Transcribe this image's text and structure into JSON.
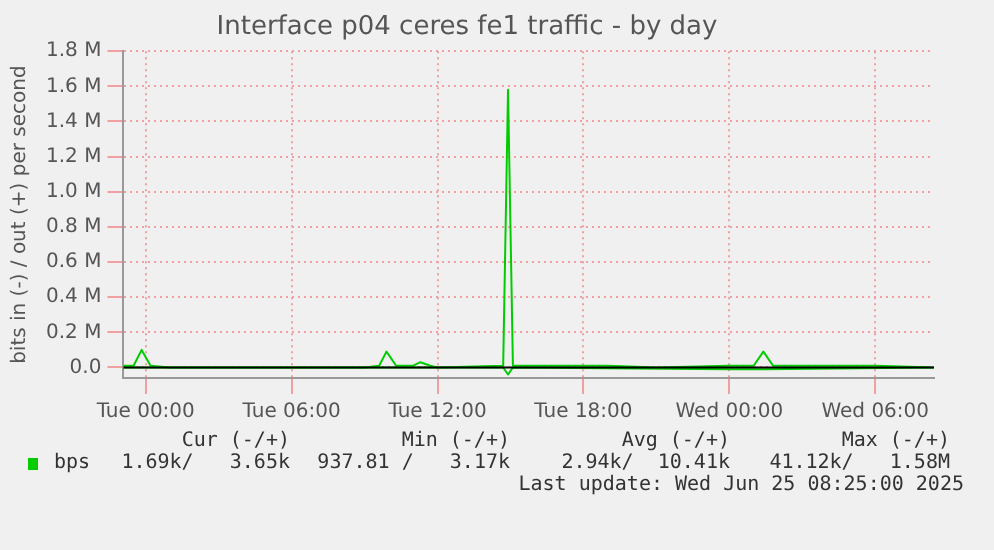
{
  "chart_data": {
    "type": "line",
    "title": "Interface p04 ceres fe1 traffic - by day",
    "ylabel": "bits in (-) / out (+) per second",
    "xlim": [
      "2025-06-23T23:05",
      "2025-06-25T08:25"
    ],
    "xticks": [
      {
        "value": "2025-06-24T00:00",
        "label": "Tue 00:00"
      },
      {
        "value": "2025-06-24T06:00",
        "label": "Tue 06:00"
      },
      {
        "value": "2025-06-24T12:00",
        "label": "Tue 12:00"
      },
      {
        "value": "2025-06-24T18:00",
        "label": "Tue 18:00"
      },
      {
        "value": "2025-06-25T00:00",
        "label": "Wed 00:00"
      },
      {
        "value": "2025-06-25T06:00",
        "label": "Wed 06:00"
      }
    ],
    "ylim": [
      -60000,
      1800000
    ],
    "yticks": [
      {
        "value": 0,
        "label": "0.0"
      },
      {
        "value": 200000,
        "label": "0.2 M"
      },
      {
        "value": 400000,
        "label": "0.4 M"
      },
      {
        "value": 600000,
        "label": "0.6 M"
      },
      {
        "value": 800000,
        "label": "0.8 M"
      },
      {
        "value": 1000000,
        "label": "1.0 M"
      },
      {
        "value": 1200000,
        "label": "1.2 M"
      },
      {
        "value": 1400000,
        "label": "1.4 M"
      },
      {
        "value": 1600000,
        "label": "1.6 M"
      },
      {
        "value": 1800000,
        "label": "1.8 M"
      }
    ],
    "grid": true,
    "legend": "bottom left",
    "marker": "none",
    "line_style": "solid",
    "series": [
      {
        "name": "bps",
        "color": "#00cc00",
        "x": [
          "2025-06-23T23:06",
          "2025-06-23T23:30",
          "2025-06-23T23:50",
          "2025-06-24T00:12",
          "2025-06-24T01:00",
          "2025-06-24T03:00",
          "2025-06-24T06:00",
          "2025-06-24T09:00",
          "2025-06-24T09:36",
          "2025-06-24T09:54",
          "2025-06-24T10:18",
          "2025-06-24T11:00",
          "2025-06-24T11:18",
          "2025-06-24T11:42",
          "2025-06-24T12:00",
          "2025-06-24T14:42",
          "2025-06-24T14:54",
          "2025-06-24T15:06",
          "2025-06-24T15:30",
          "2025-06-24T18:00",
          "2025-06-24T19:00",
          "2025-06-24T21:00",
          "2025-06-25T00:00",
          "2025-06-25T01:00",
          "2025-06-25T01:24",
          "2025-06-25T01:48",
          "2025-06-25T03:00",
          "2025-06-25T06:00",
          "2025-06-25T08:24"
        ],
        "values": [
          10000,
          10000,
          100000,
          10000,
          0,
          0,
          0,
          0,
          10000,
          90000,
          10000,
          10000,
          30000,
          10000,
          0,
          10000,
          1580000,
          10000,
          10000,
          10000,
          10000,
          0,
          10000,
          10000,
          90000,
          10000,
          10000,
          10000,
          0
        ]
      },
      {
        "color": "#00cc00",
        "x": [
          "2025-06-23T23:06",
          "2025-06-24T14:42",
          "2025-06-24T14:54",
          "2025-06-24T15:06",
          "2025-06-25T00:00",
          "2025-06-25T01:24",
          "2025-06-25T08:24"
        ],
        "values": [
          0,
          0,
          -40000,
          0,
          -10000,
          -10000,
          0
        ]
      }
    ],
    "annotations": [
      "Cur (-/+)",
      "Min (-/+)",
      "Avg (-/+)",
      "Max (-/+)",
      "1.69k/   3.65k",
      "937.81 /   3.17k",
      "2.94k/  10.41k",
      "41.12k/   1.58M",
      "Last update: Wed Jun 25 08:25:00 2025"
    ]
  }
}
